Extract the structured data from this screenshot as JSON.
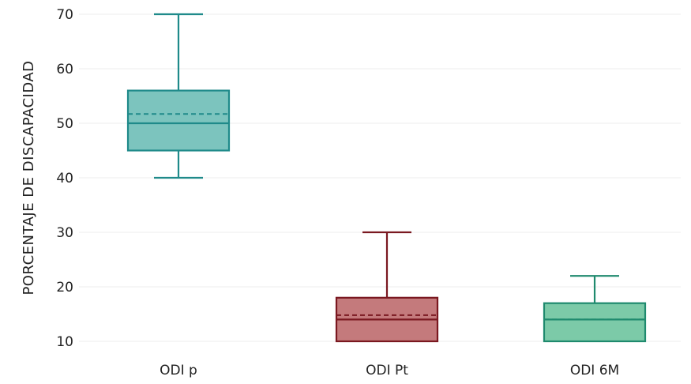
{
  "chart_data": {
    "type": "boxplot",
    "title": "",
    "xlabel": "",
    "ylabel": "PORCENTAJE DE DISCAPACIDAD",
    "ylim": [
      7.5,
      71
    ],
    "yticks": [
      10,
      20,
      30,
      40,
      50,
      60,
      70
    ],
    "grid": true,
    "categories": [
      "ODI p",
      "ODI Pt",
      "ODI 6M"
    ],
    "boxes": [
      {
        "category": "ODI p",
        "whisker_low": 40,
        "q1": 45,
        "median": 50,
        "mean": 51.7,
        "q3": 56,
        "whisker_high": 70,
        "color": "#1f8a8a",
        "fill": "#7cc4be"
      },
      {
        "category": "ODI Pt",
        "whisker_low": 10,
        "q1": 10,
        "median": 14,
        "mean": 14.8,
        "q3": 18,
        "whisker_high": 30,
        "color": "#7a1820",
        "fill": "#c47a7c"
      },
      {
        "category": "ODI 6M",
        "whisker_low": 10,
        "q1": 10,
        "median": 14,
        "mean": 14.0,
        "q3": 17,
        "whisker_high": 22,
        "color": "#1f8a6e",
        "fill": "#7ccaa8"
      }
    ]
  }
}
